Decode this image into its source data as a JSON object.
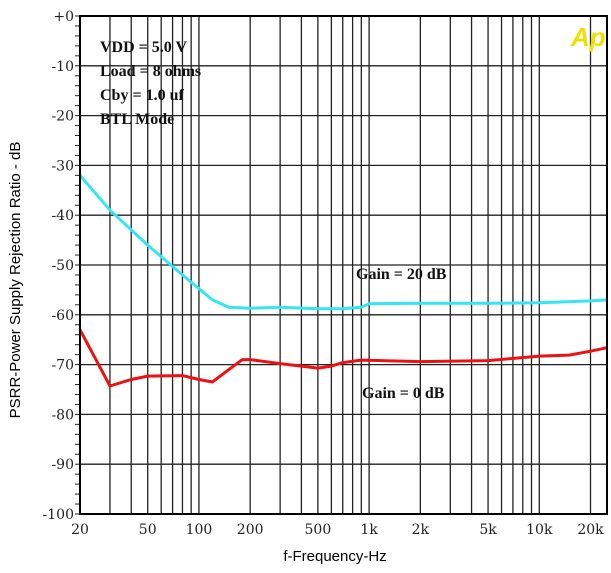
{
  "chart_data": {
    "type": "line",
    "title": "",
    "xlabel": "f-Frequency-Hz",
    "ylabel": "PSRR-Power Supply Rejection Ratio - dB",
    "xscale": "log",
    "xlim": [
      20,
      25000
    ],
    "ylim": [
      -100,
      0
    ],
    "grid": true,
    "legend": "none",
    "y_ticks": [
      0,
      -10,
      -20,
      -30,
      -40,
      -50,
      -60,
      -70,
      -80,
      -90,
      -100
    ],
    "y_tick_labels": [
      "+0",
      "-10",
      "-20",
      "-30",
      "-40",
      "-50",
      "-60",
      "-70",
      "-80",
      "-90",
      "-100"
    ],
    "x_ticks": [
      20,
      50,
      100,
      200,
      500,
      1000,
      2000,
      5000,
      10000,
      20000
    ],
    "x_tick_labels": [
      "20",
      "50",
      "100",
      "200",
      "500",
      "1k",
      "2k",
      "5k",
      "10k",
      "20k"
    ],
    "annotations": [
      "VDD = 5.0 V",
      "Load = 8 ohms",
      "Cby = 1.0 uf",
      "BTL  Mode"
    ],
    "series": [
      {
        "name": "Gain = 20 dB",
        "color": "#33e5f5",
        "points": [
          [
            20,
            -32
          ],
          [
            30,
            -39
          ],
          [
            50,
            -46
          ],
          [
            80,
            -52
          ],
          [
            120,
            -57
          ],
          [
            150,
            -58.5
          ],
          [
            200,
            -58.7
          ],
          [
            300,
            -58.5
          ],
          [
            500,
            -58.8
          ],
          [
            700,
            -58.8
          ],
          [
            900,
            -58.5
          ],
          [
            1000,
            -57.8
          ],
          [
            2000,
            -57.7
          ],
          [
            5000,
            -57.7
          ],
          [
            10000,
            -57.6
          ],
          [
            20000,
            -57.2
          ],
          [
            25000,
            -57.0
          ]
        ]
      },
      {
        "name": "Gain = 0 dB",
        "color": "#ee1111",
        "points": [
          [
            20,
            -63
          ],
          [
            30,
            -74.3
          ],
          [
            40,
            -73
          ],
          [
            50,
            -72.3
          ],
          [
            80,
            -72.2
          ],
          [
            100,
            -73
          ],
          [
            120,
            -73.5
          ],
          [
            150,
            -71
          ],
          [
            180,
            -69
          ],
          [
            200,
            -69
          ],
          [
            300,
            -69.8
          ],
          [
            400,
            -70.3
          ],
          [
            500,
            -70.7
          ],
          [
            600,
            -70.3
          ],
          [
            700,
            -69.6
          ],
          [
            900,
            -69.1
          ],
          [
            2000,
            -69.4
          ],
          [
            5000,
            -69.2
          ],
          [
            10000,
            -68.3
          ],
          [
            15000,
            -68.1
          ],
          [
            20000,
            -67.3
          ],
          [
            25000,
            -66.6
          ]
        ]
      }
    ]
  },
  "series_labels": {
    "gain20": "Gain = 20 dB",
    "gain0": "Gain = 0 dB"
  },
  "logo": {
    "text": "Ap",
    "color": "#f0e000"
  },
  "colors": {
    "grid": "#222222",
    "frame": "#000000"
  }
}
